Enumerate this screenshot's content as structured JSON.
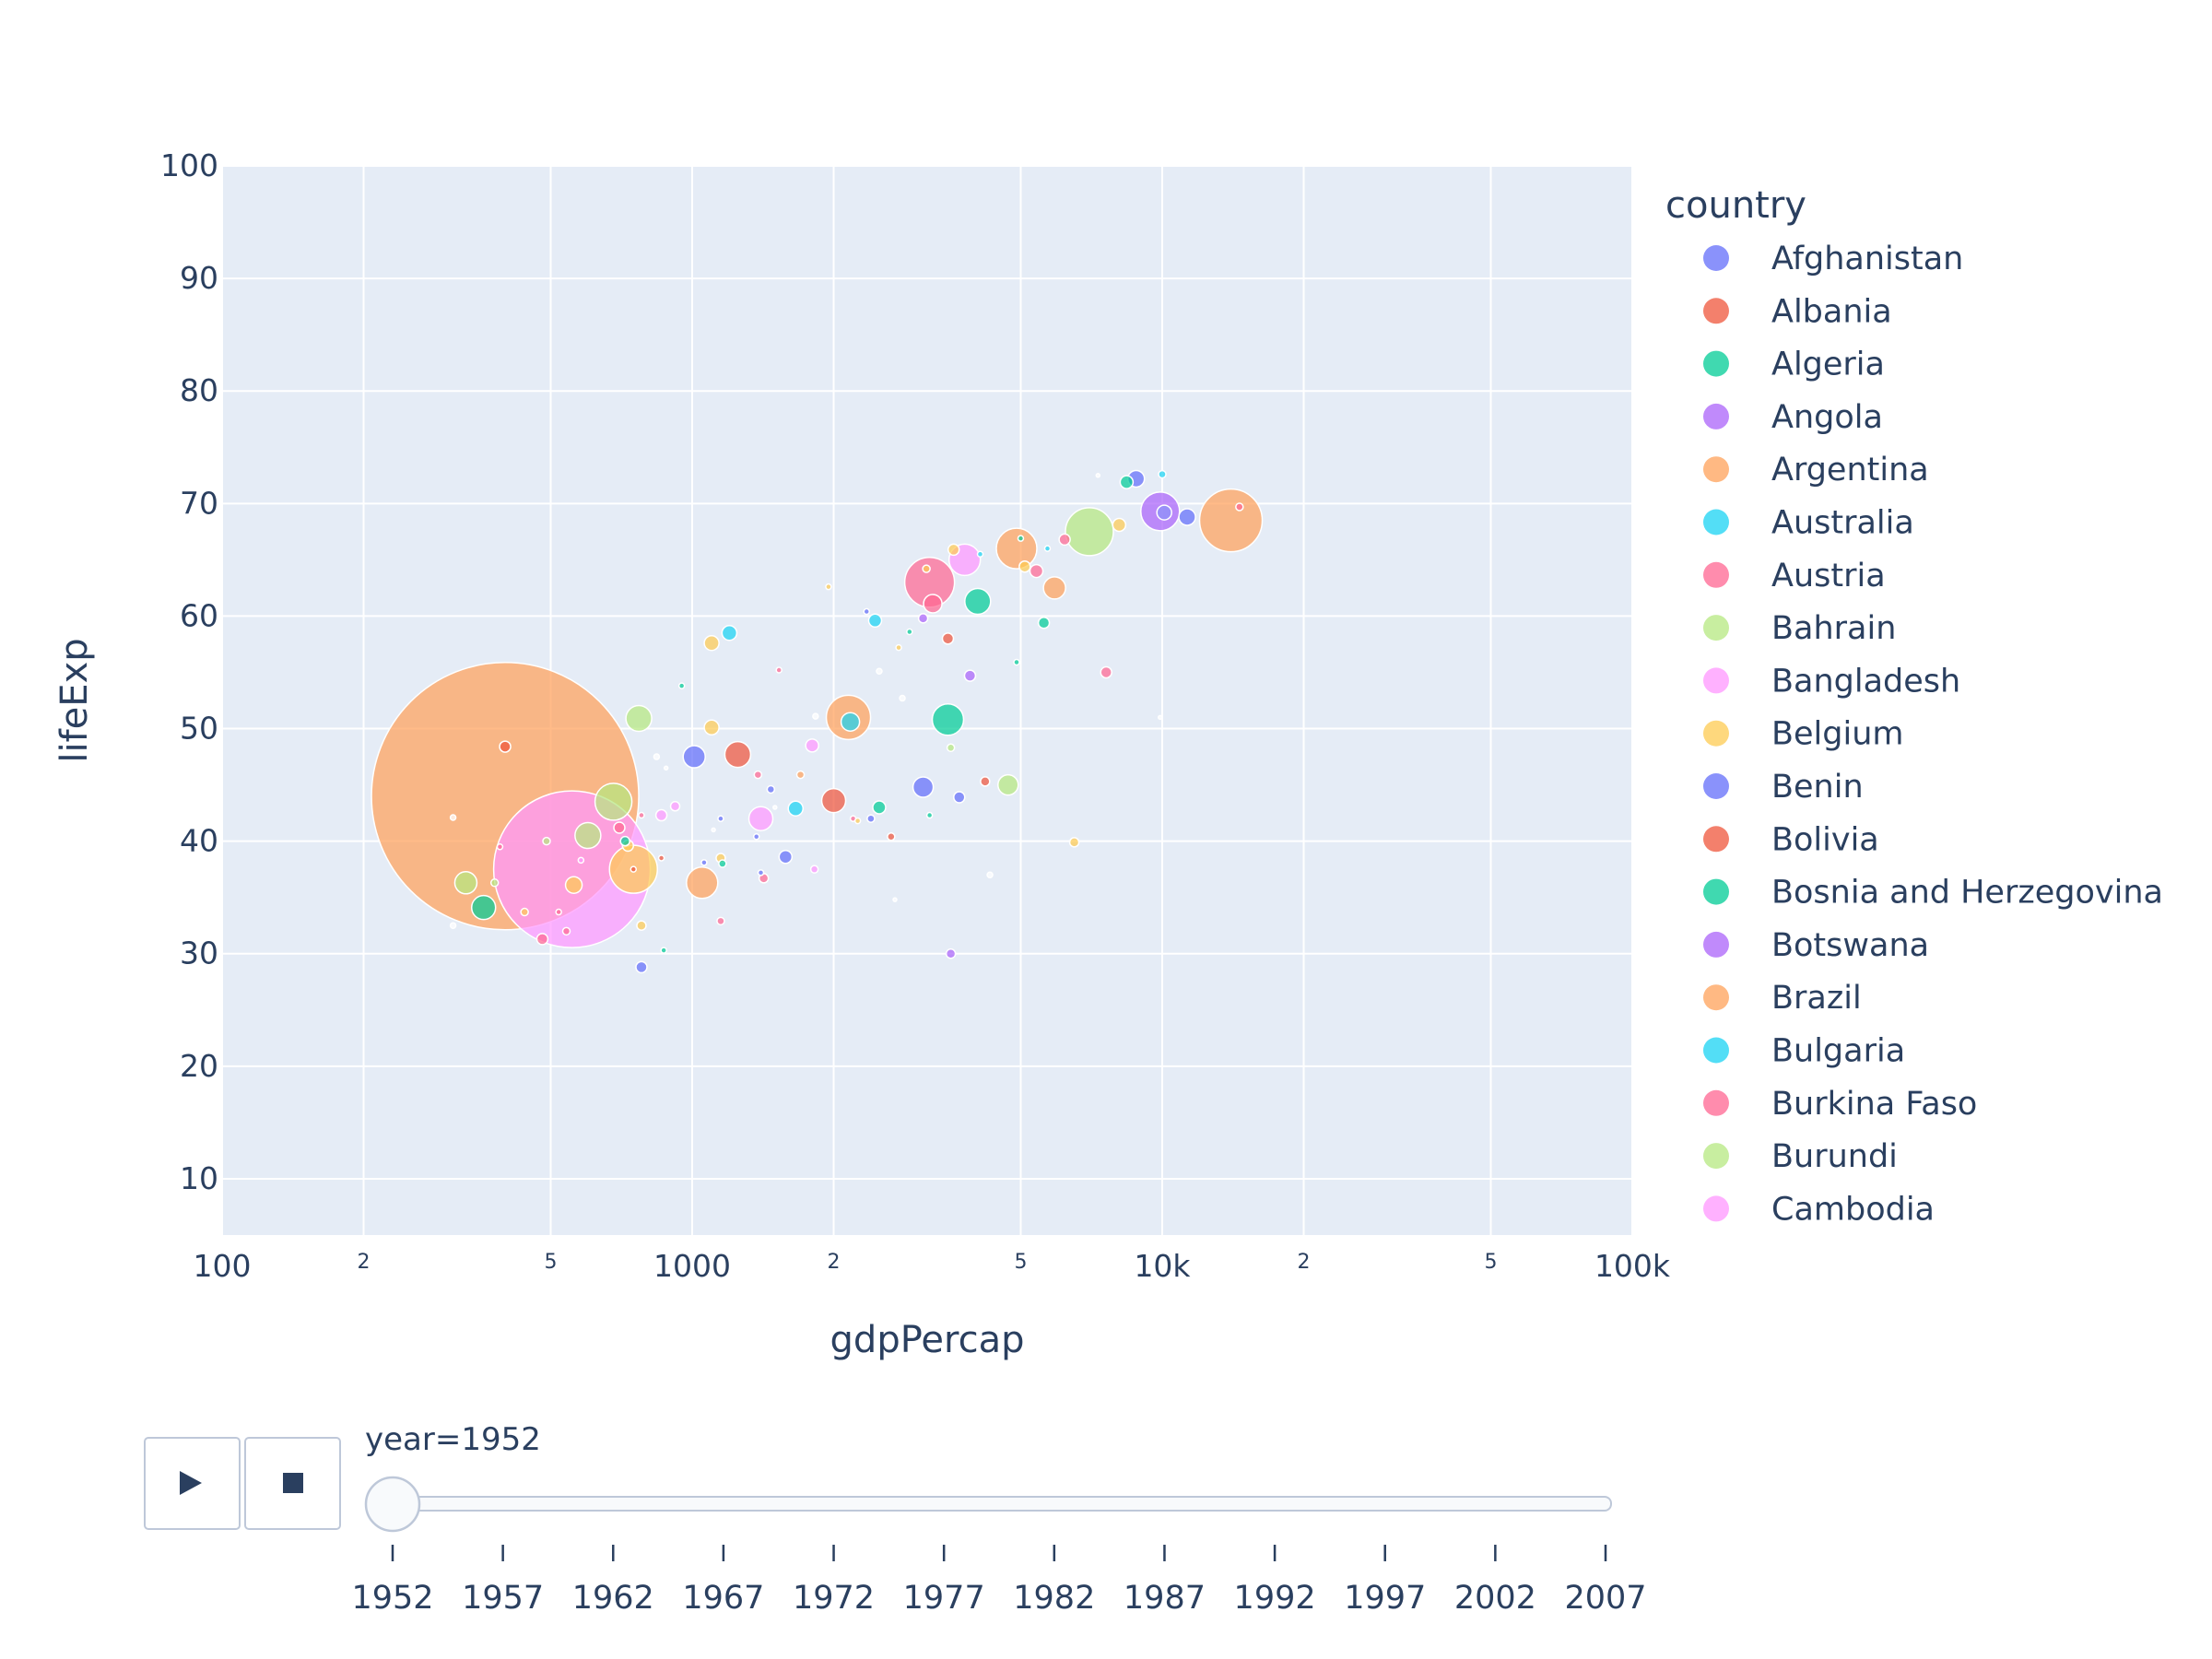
{
  "chart_data": {
    "type": "scatter",
    "xlabel": "gdpPercap",
    "ylabel": "lifeExp",
    "x_scale": "log",
    "xlim": [
      100,
      100000
    ],
    "ylim": [
      5,
      100
    ],
    "grid": true,
    "x_major_ticks": [
      {
        "value": 100,
        "label": "100"
      },
      {
        "value": 1000,
        "label": "1000"
      },
      {
        "value": 10000,
        "label": "10k"
      },
      {
        "value": 100000,
        "label": "100k"
      }
    ],
    "x_minor_ticks": [
      {
        "value": 200,
        "label": "2"
      },
      {
        "value": 500,
        "label": "5"
      },
      {
        "value": 2000,
        "label": "2"
      },
      {
        "value": 5000,
        "label": "5"
      },
      {
        "value": 20000,
        "label": "2"
      },
      {
        "value": 50000,
        "label": "5"
      }
    ],
    "y_ticks": [
      10,
      20,
      30,
      40,
      50,
      60,
      70,
      80,
      90,
      100
    ],
    "legend_title": "country",
    "legend_position": "right",
    "legend": [
      {
        "name": "Afghanistan",
        "color": "#636efa"
      },
      {
        "name": "Albania",
        "color": "#EF553B"
      },
      {
        "name": "Algeria",
        "color": "#00cc96"
      },
      {
        "name": "Angola",
        "color": "#ab63fa"
      },
      {
        "name": "Argentina",
        "color": "#FFA15A"
      },
      {
        "name": "Australia",
        "color": "#19d3f3"
      },
      {
        "name": "Austria",
        "color": "#FF6692"
      },
      {
        "name": "Bahrain",
        "color": "#B6E880"
      },
      {
        "name": "Bangladesh",
        "color": "#FF97FF"
      },
      {
        "name": "Belgium",
        "color": "#FECB52"
      },
      {
        "name": "Benin",
        "color": "#636efa"
      },
      {
        "name": "Bolivia",
        "color": "#EF553B"
      },
      {
        "name": "Bosnia and Herzegovina",
        "color": "#00cc96"
      },
      {
        "name": "Botswana",
        "color": "#ab63fa"
      },
      {
        "name": "Brazil",
        "color": "#FFA15A"
      },
      {
        "name": "Bulgaria",
        "color": "#19d3f3"
      },
      {
        "name": "Burkina Faso",
        "color": "#FF6692"
      },
      {
        "name": "Burundi",
        "color": "#B6E880"
      },
      {
        "name": "Cambodia",
        "color": "#FF97FF"
      }
    ],
    "points": [
      {
        "x": 400,
        "y": 44,
        "size": 145,
        "color": "#FFA15A"
      },
      {
        "x": 555,
        "y": 37.5,
        "size": 85,
        "color": "#FF97FF"
      },
      {
        "x": 14000,
        "y": 68.5,
        "size": 34,
        "color": "#FFA15A"
      },
      {
        "x": 3200,
        "y": 63,
        "size": 27,
        "color": "#FF6692"
      },
      {
        "x": 7000,
        "y": 67.5,
        "size": 26,
        "color": "#B6E880"
      },
      {
        "x": 750,
        "y": 37.5,
        "size": 26,
        "color": "#FECB52"
      },
      {
        "x": 9900,
        "y": 69.3,
        "size": 21,
        "color": "#ab63fa"
      },
      {
        "x": 2150,
        "y": 51,
        "size": 24,
        "color": "#FFA15A"
      },
      {
        "x": 4900,
        "y": 66,
        "size": 22,
        "color": "#FFA15A"
      },
      {
        "x": 680,
        "y": 43.5,
        "size": 20,
        "color": "#B6E880"
      },
      {
        "x": 3800,
        "y": 65,
        "size": 17,
        "color": "#FF97FF"
      },
      {
        "x": 3500,
        "y": 50.8,
        "size": 17,
        "color": "#00cc96"
      },
      {
        "x": 1050,
        "y": 36.3,
        "size": 17,
        "color": "#FFA15A"
      },
      {
        "x": 1250,
        "y": 47.7,
        "size": 14,
        "color": "#EF553B"
      },
      {
        "x": 4050,
        "y": 61.3,
        "size": 14,
        "color": "#00cc96"
      },
      {
        "x": 600,
        "y": 40.5,
        "size": 14,
        "color": "#B6E880"
      },
      {
        "x": 770,
        "y": 50.9,
        "size": 14,
        "color": "#B6E880"
      },
      {
        "x": 1400,
        "y": 42,
        "size": 13,
        "color": "#FF97FF"
      },
      {
        "x": 360,
        "y": 34.1,
        "size": 13,
        "color": "#00cc96"
      },
      {
        "x": 330,
        "y": 36.3,
        "size": 12,
        "color": "#B6E880"
      },
      {
        "x": 2000,
        "y": 43.6,
        "size": 13,
        "color": "#EF553B"
      },
      {
        "x": 1010,
        "y": 47.5,
        "size": 12,
        "color": "#636efa"
      },
      {
        "x": 5900,
        "y": 62.5,
        "size": 12,
        "color": "#FFA15A"
      },
      {
        "x": 3100,
        "y": 44.8,
        "size": 11,
        "color": "#636efa"
      },
      {
        "x": 4700,
        "y": 45,
        "size": 11,
        "color": "#B6E880"
      },
      {
        "x": 2170,
        "y": 50.6,
        "size": 10,
        "color": "#19d3f3"
      },
      {
        "x": 3250,
        "y": 61.1,
        "size": 10,
        "color": "#FF6692"
      },
      {
        "x": 8800,
        "y": 72.2,
        "size": 9,
        "color": "#636efa"
      },
      {
        "x": 11300,
        "y": 68.8,
        "size": 9,
        "color": "#636efa"
      },
      {
        "x": 10100,
        "y": 69.2,
        "size": 8,
        "color": "#8c92f7"
      },
      {
        "x": 560,
        "y": 36.1,
        "size": 9,
        "color": "#FECB52"
      },
      {
        "x": 1660,
        "y": 42.9,
        "size": 8,
        "color": "#19d3f3"
      },
      {
        "x": 1200,
        "y": 58.5,
        "size": 8,
        "color": "#19d3f3"
      },
      {
        "x": 1100,
        "y": 50.1,
        "size": 8,
        "color": "#FECB52"
      },
      {
        "x": 1100,
        "y": 57.6,
        "size": 8,
        "color": "#FECB52"
      },
      {
        "x": 8400,
        "y": 71.9,
        "size": 7,
        "color": "#00cc96"
      },
      {
        "x": 8100,
        "y": 68.1,
        "size": 7,
        "color": "#FECB52"
      },
      {
        "x": 1800,
        "y": 48.5,
        "size": 7,
        "color": "#FF97FF"
      },
      {
        "x": 2450,
        "y": 59.6,
        "size": 7,
        "color": "#19d3f3"
      },
      {
        "x": 2500,
        "y": 43,
        "size": 7,
        "color": "#00cc96"
      },
      {
        "x": 1580,
        "y": 38.6,
        "size": 7,
        "color": "#636efa"
      },
      {
        "x": 5400,
        "y": 64,
        "size": 7,
        "color": "#FF6692"
      },
      {
        "x": 5100,
        "y": 64.4,
        "size": 6,
        "color": "#FECB52"
      },
      {
        "x": 6200,
        "y": 66.8,
        "size": 6,
        "color": "#FF6692"
      },
      {
        "x": 3700,
        "y": 43.9,
        "size": 6,
        "color": "#636efa"
      },
      {
        "x": 3600,
        "y": 65.9,
        "size": 6,
        "color": "#FECB52"
      },
      {
        "x": 3500,
        "y": 58,
        "size": 6,
        "color": "#EF553B"
      },
      {
        "x": 3900,
        "y": 54.7,
        "size": 6,
        "color": "#ab63fa"
      },
      {
        "x": 7600,
        "y": 55,
        "size": 6,
        "color": "#FF6692"
      },
      {
        "x": 5600,
        "y": 59.4,
        "size": 6,
        "color": "#00cc96"
      },
      {
        "x": 730,
        "y": 39.6,
        "size": 6,
        "color": "#FECB52"
      },
      {
        "x": 700,
        "y": 41.2,
        "size": 6,
        "color": "#FF6692"
      },
      {
        "x": 860,
        "y": 42.3,
        "size": 6,
        "color": "#FF97FF"
      },
      {
        "x": 920,
        "y": 43.1,
        "size": 5,
        "color": "#FF97FF"
      },
      {
        "x": 780,
        "y": 28.8,
        "size": 6,
        "color": "#636efa"
      },
      {
        "x": 480,
        "y": 31.3,
        "size": 6,
        "color": "#FF6692"
      },
      {
        "x": 720,
        "y": 40,
        "size": 5,
        "color": "#00cc96"
      },
      {
        "x": 3100,
        "y": 59.8,
        "size": 5,
        "color": "#ab63fa"
      },
      {
        "x": 4200,
        "y": 45.3,
        "size": 5,
        "color": "#EF553B"
      },
      {
        "x": 3550,
        "y": 30,
        "size": 5,
        "color": "#ab63fa"
      },
      {
        "x": 6500,
        "y": 39.9,
        "size": 5,
        "color": "#FECB52"
      },
      {
        "x": 10000,
        "y": 72.6,
        "size": 4,
        "color": "#19d3f3"
      },
      {
        "x": 14600,
        "y": 69.7,
        "size": 4,
        "color": "#FF6692"
      },
      {
        "x": 3150,
        "y": 64.2,
        "size": 4,
        "color": "#FECB52"
      },
      {
        "x": 780,
        "y": 32.5,
        "size": 5,
        "color": "#FECB52"
      },
      {
        "x": 1420,
        "y": 36.7,
        "size": 5,
        "color": "#FF6692"
      },
      {
        "x": 1150,
        "y": 38.5,
        "size": 5,
        "color": "#FECB52"
      },
      {
        "x": 540,
        "y": 32,
        "size": 4,
        "color": "#FF6692"
      },
      {
        "x": 440,
        "y": 33.7,
        "size": 4,
        "color": "#FECB52"
      },
      {
        "x": 1700,
        "y": 45.9,
        "size": 4,
        "color": "#FFA15A"
      },
      {
        "x": 1380,
        "y": 45.9,
        "size": 4,
        "color": "#FF6692"
      },
      {
        "x": 1150,
        "y": 32.9,
        "size": 4,
        "color": "#FF6692"
      },
      {
        "x": 1160,
        "y": 38,
        "size": 4,
        "color": "#00cc96"
      },
      {
        "x": 2400,
        "y": 42,
        "size": 4,
        "color": "#636efa"
      },
      {
        "x": 2650,
        "y": 40.4,
        "size": 4,
        "color": "#EF553B"
      },
      {
        "x": 1470,
        "y": 44.6,
        "size": 4,
        "color": "#636efa"
      },
      {
        "x": 1820,
        "y": 37.5,
        "size": 4,
        "color": "#FF97FF"
      },
      {
        "x": 950,
        "y": 53.8,
        "size": 3,
        "color": "#00cc96"
      },
      {
        "x": 870,
        "y": 30.3,
        "size": 3,
        "color": "#00cc96"
      },
      {
        "x": 5700,
        "y": 66,
        "size": 3,
        "color": "#19d3f3"
      },
      {
        "x": 4900,
        "y": 55.9,
        "size": 3,
        "color": "#00cc96"
      },
      {
        "x": 1400,
        "y": 37.2,
        "size": 3,
        "color": "#636efa"
      },
      {
        "x": 400,
        "y": 48.4,
        "size": 6,
        "color": "#EF553B"
      },
      {
        "x": 390,
        "y": 39.5,
        "size": 3,
        "color": "#FF6692"
      },
      {
        "x": 380,
        "y": 36.3,
        "size": 4,
        "color": "#B6E880"
      },
      {
        "x": 490,
        "y": 40,
        "size": 4,
        "color": "#B6E880"
      },
      {
        "x": 520,
        "y": 33.7,
        "size": 3,
        "color": "#FF6692"
      },
      {
        "x": 750,
        "y": 37.5,
        "size": 3,
        "color": "#EF553B"
      },
      {
        "x": 580,
        "y": 38.3,
        "size": 3,
        "color": "#FF97FF"
      },
      {
        "x": 1060,
        "y": 38.1,
        "size": 3,
        "color": "#636efa"
      },
      {
        "x": 1150,
        "y": 42,
        "size": 3,
        "color": "#636efa"
      },
      {
        "x": 1370,
        "y": 40.4,
        "size": 3,
        "color": "#636efa"
      },
      {
        "x": 1530,
        "y": 55.2,
        "size": 3,
        "color": "#FF6692"
      },
      {
        "x": 1950,
        "y": 62.6,
        "size": 3,
        "color": "#FECB52"
      },
      {
        "x": 2350,
        "y": 60.4,
        "size": 3,
        "color": "#636efa"
      },
      {
        "x": 2900,
        "y": 58.6,
        "size": 3,
        "color": "#00cc96"
      },
      {
        "x": 2750,
        "y": 57.2,
        "size": 3,
        "color": "#FECB52"
      },
      {
        "x": 3550,
        "y": 48.3,
        "size": 4,
        "color": "#B6E880"
      },
      {
        "x": 4100,
        "y": 65.5,
        "size": 3,
        "color": "#19d3f3"
      },
      {
        "x": 5000,
        "y": 66.9,
        "size": 3,
        "color": "#00cc96"
      },
      {
        "x": 3200,
        "y": 42.3,
        "size": 3,
        "color": "#00cc96"
      },
      {
        "x": 2200,
        "y": 42,
        "size": 3,
        "color": "#FF6692"
      },
      {
        "x": 2250,
        "y": 41.8,
        "size": 3,
        "color": "#FECB52"
      },
      {
        "x": 780,
        "y": 42.3,
        "size": 3,
        "color": "#FF6692"
      },
      {
        "x": 860,
        "y": 38.5,
        "size": 3,
        "color": "#EF553B"
      },
      {
        "x": 310,
        "y": 32.5,
        "size": 3,
        "color": "#ffffff"
      },
      {
        "x": 310,
        "y": 42.1,
        "size": 3,
        "color": "#ffffff"
      },
      {
        "x": 840,
        "y": 47.5,
        "size": 3,
        "color": "#ffffff"
      },
      {
        "x": 880,
        "y": 46.5,
        "size": 2,
        "color": "#ffffff"
      },
      {
        "x": 1110,
        "y": 41,
        "size": 2,
        "color": "#ffffff"
      },
      {
        "x": 1500,
        "y": 43,
        "size": 2,
        "color": "#ffffff"
      },
      {
        "x": 2800,
        "y": 52.7,
        "size": 3,
        "color": "#ffffff"
      },
      {
        "x": 2500,
        "y": 55.1,
        "size": 3,
        "color": "#ffffff"
      },
      {
        "x": 4300,
        "y": 37,
        "size": 3,
        "color": "#ffffff"
      },
      {
        "x": 7300,
        "y": 72.5,
        "size": 2,
        "color": "#ffffff"
      },
      {
        "x": 9900,
        "y": 51,
        "size": 2,
        "color": "#ffffff"
      },
      {
        "x": 2700,
        "y": 34.8,
        "size": 2,
        "color": "#ffffff"
      },
      {
        "x": 1830,
        "y": 51.1,
        "size": 3,
        "color": "#ffffff"
      }
    ]
  },
  "controls": {
    "slider_label": "year=1952",
    "slider_value": 1952,
    "years": [
      "1952",
      "1957",
      "1962",
      "1967",
      "1972",
      "1977",
      "1982",
      "1987",
      "1992",
      "1997",
      "2002",
      "2007"
    ],
    "play_icon": "play-icon",
    "stop_icon": "stop-icon"
  }
}
